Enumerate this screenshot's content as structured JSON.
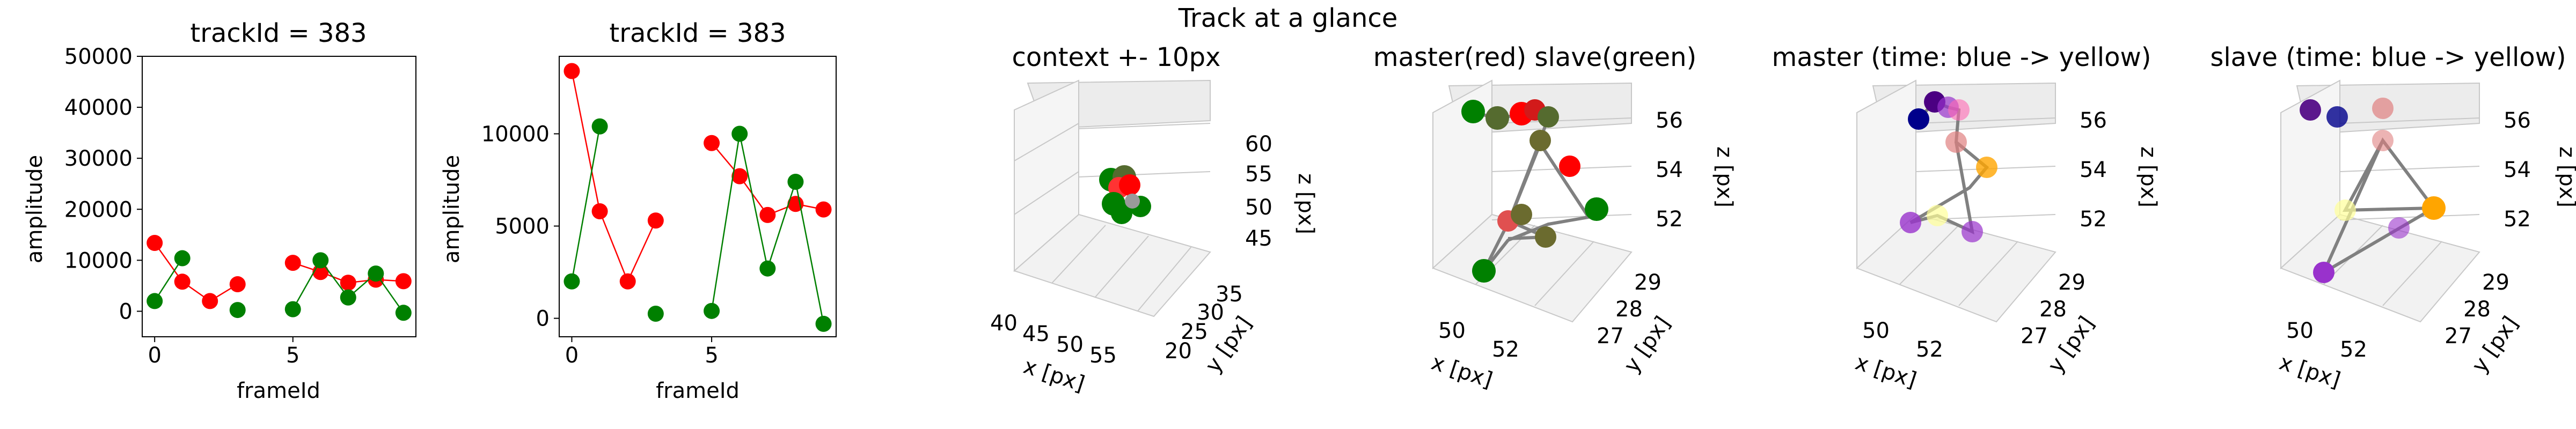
{
  "figure": {
    "suptitle": "Track at a glance"
  },
  "colors": {
    "red": "#ff0000",
    "green": "#008000",
    "edge": "#808080"
  },
  "chart_data": [
    {
      "type": "line",
      "title": "trackId = 383",
      "xlabel": "frameId",
      "ylabel": "amplitude",
      "xlim": [
        -0.45,
        9.45
      ],
      "ylim": [
        -5000,
        50000
      ],
      "xticks": [
        0,
        5
      ],
      "yticks": [
        0,
        10000,
        20000,
        30000,
        40000,
        50000
      ],
      "series": [
        {
          "color": "#ff0000",
          "segments": [
            {
              "x": [
                0,
                1,
                2,
                3
              ],
              "y": [
                13400,
                5800,
                2000,
                5300
              ]
            },
            {
              "x": [
                5,
                6,
                7,
                8,
                9
              ],
              "y": [
                9500,
                7700,
                5600,
                6200,
                5900
              ]
            }
          ]
        },
        {
          "color": "#008000",
          "segments": [
            {
              "x": [
                0,
                1
              ],
              "y": [
                2000,
                10400
              ]
            },
            {
              "x": [
                3
              ],
              "y": [
                250
              ]
            },
            {
              "x": [
                5,
                6,
                7,
                8,
                9
              ],
              "y": [
                400,
                10000,
                2700,
                7400,
                -300
              ]
            }
          ]
        }
      ]
    },
    {
      "type": "line",
      "title": "trackId = 383",
      "xlabel": "frameId",
      "ylabel": "amplitude",
      "xlim": [
        -0.45,
        9.45
      ],
      "ylim": [
        -1000,
        14200
      ],
      "xticks": [
        0,
        5
      ],
      "yticks": [
        0,
        5000,
        10000
      ],
      "series": [
        {
          "color": "#ff0000",
          "segments": [
            {
              "x": [
                0,
                1,
                2,
                3
              ],
              "y": [
                13400,
                5800,
                2000,
                5300
              ]
            },
            {
              "x": [
                5,
                6,
                7,
                8,
                9
              ],
              "y": [
                9500,
                7700,
                5600,
                6200,
                5900
              ]
            }
          ]
        },
        {
          "color": "#008000",
          "segments": [
            {
              "x": [
                0,
                1
              ],
              "y": [
                2000,
                10400
              ]
            },
            {
              "x": [
                3
              ],
              "y": [
                250
              ]
            },
            {
              "x": [
                5,
                6,
                7,
                8,
                9
              ],
              "y": [
                400,
                10000,
                2700,
                7400,
                -300
              ]
            }
          ]
        }
      ]
    },
    {
      "type": "scatter",
      "title": "context +- 10px",
      "xlabel": "x [px]",
      "ylabel": "y [px]",
      "zlabel": "z [px]",
      "xticks": [
        "40",
        "45",
        "50",
        "55"
      ],
      "yticks": [
        "20",
        "25",
        "30",
        "35"
      ],
      "zticks": [
        "45",
        "50",
        "55",
        "60"
      ],
      "clusters": [
        "green",
        "red",
        "olive"
      ]
    },
    {
      "type": "scatter",
      "title": "master(red) slave(green)",
      "xlabel": "x [px]",
      "ylabel": "y [px]",
      "zlabel": "z [px]",
      "xticks": [
        "50",
        "52"
      ],
      "yticks": [
        "27",
        "28",
        "29"
      ],
      "zticks": [
        "52",
        "54",
        "56"
      ],
      "legend_note": "master red, slave green"
    },
    {
      "type": "scatter",
      "title": "master (time: blue -> yellow)",
      "xlabel": "x [px]",
      "ylabel": "y [px]",
      "zlabel": "z [px]",
      "xticks": [
        "50",
        "52"
      ],
      "yticks": [
        "27",
        "28",
        "29"
      ],
      "zticks": [
        "52",
        "54",
        "56"
      ],
      "colormap": [
        "#00008b",
        "#4b0082",
        "#9932cc",
        "#ff69b4",
        "#ffa500",
        "#ffff99"
      ]
    },
    {
      "type": "scatter",
      "title": "slave (time: blue -> yellow)",
      "xlabel": "x [px]",
      "ylabel": "y [px]",
      "zlabel": "z [px]",
      "xticks": [
        "50",
        "52"
      ],
      "yticks": [
        "27",
        "28",
        "29"
      ],
      "zticks": [
        "52",
        "54",
        "56"
      ],
      "colormap": [
        "#00008b",
        "#4b0082",
        "#9932cc",
        "#ff69b4",
        "#ffa500",
        "#ffff99"
      ]
    }
  ]
}
